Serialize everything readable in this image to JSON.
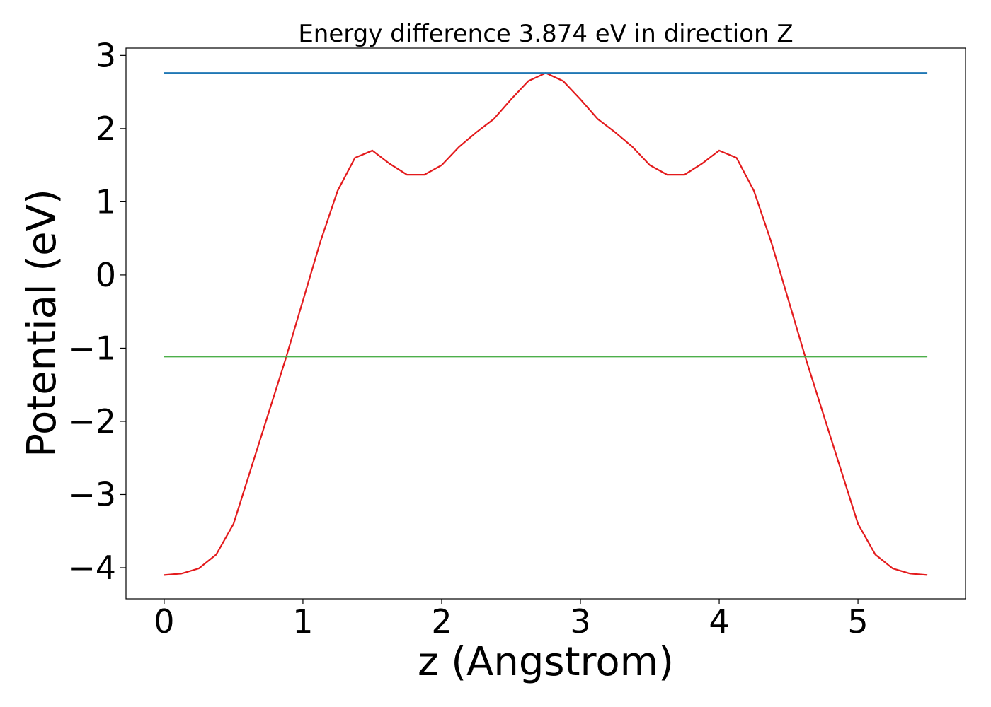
{
  "chart_data": {
    "type": "line",
    "title": "Energy difference 3.874 eV in direction Z",
    "xlabel": "z (Angstrom)",
    "ylabel": "Potential (eV)",
    "xlim": [
      -0.275,
      5.775
    ],
    "ylim": [
      -4.425,
      3.1
    ],
    "xticks": [
      0,
      1,
      2,
      3,
      4,
      5
    ],
    "yticks": [
      {
        "value": -4,
        "label": "−4"
      },
      {
        "value": -3,
        "label": "−3"
      },
      {
        "value": -2,
        "label": "−2"
      },
      {
        "value": -1,
        "label": "−1"
      },
      0,
      1,
      2,
      3
    ],
    "series": [
      {
        "color": "#e31a1c",
        "x": [
          0,
          0.125,
          0.25,
          0.375,
          0.5,
          0.625,
          0.75,
          0.875,
          1.0,
          1.125,
          1.25,
          1.375,
          1.5,
          1.625,
          1.75,
          1.875,
          2.0,
          2.125,
          2.25,
          2.375,
          2.5,
          2.625,
          2.75,
          2.875,
          3.0,
          3.125,
          3.25,
          3.375,
          3.5,
          3.625,
          3.75,
          3.875,
          4.0,
          4.125,
          4.25,
          4.375,
          4.5,
          4.625,
          4.75,
          4.875,
          5.0,
          5.125,
          5.25,
          5.375,
          5.5
        ],
        "values": [
          -4.1,
          -4.08,
          -4.01,
          -3.82,
          -3.4,
          -2.65,
          -1.9,
          -1.15,
          -0.35,
          0.45,
          1.15,
          1.6,
          1.7,
          1.52,
          1.37,
          1.37,
          1.5,
          1.75,
          1.95,
          2.13,
          2.4,
          2.65,
          2.76,
          2.65,
          2.4,
          2.13,
          1.95,
          1.75,
          1.5,
          1.37,
          1.37,
          1.52,
          1.7,
          1.6,
          1.15,
          0.45,
          -0.35,
          -1.15,
          -1.9,
          -2.65,
          -3.4,
          -3.82,
          -4.01,
          -4.08,
          -4.1
        ]
      },
      {
        "color": "#1f77b4",
        "x": [
          0,
          5.5
        ],
        "values": [
          2.76,
          2.76
        ]
      },
      {
        "color": "#4daf4a",
        "x": [
          0,
          5.5
        ],
        "values": [
          -1.114,
          -1.114
        ]
      }
    ]
  }
}
